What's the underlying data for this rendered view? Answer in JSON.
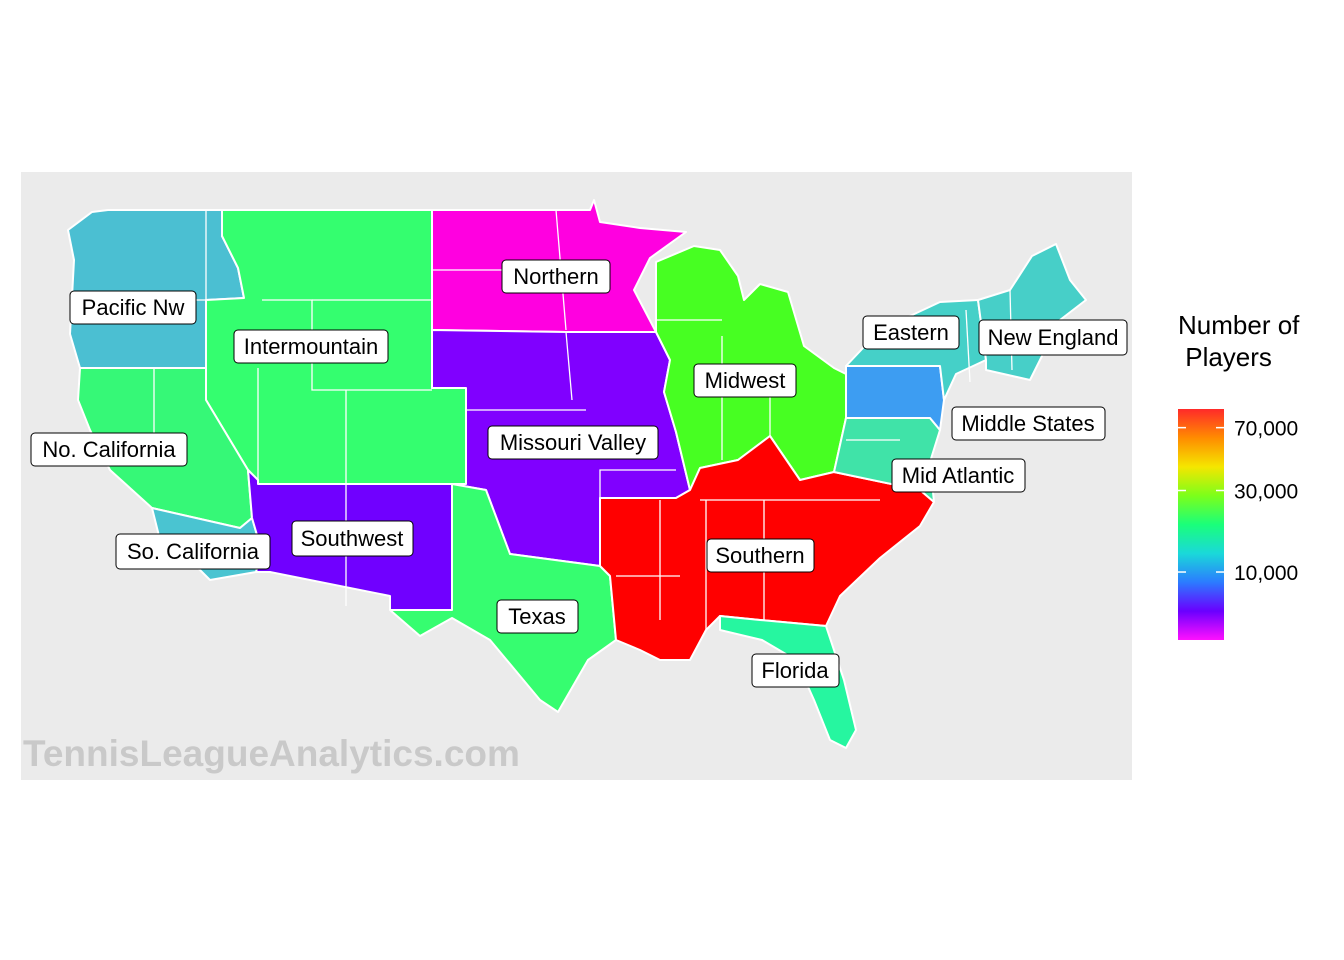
{
  "watermark": "TennisLeagueAnalytics.com",
  "legend": {
    "title_line1": "Number of",
    "title_line2": " Players",
    "ticks": [
      {
        "label": "70,000",
        "value": 70000
      },
      {
        "label": "30,000",
        "value": 30000
      },
      {
        "label": "10,000",
        "value": 10000
      }
    ],
    "colors": [
      "#ff2a2a",
      "#ff8c00",
      "#f5e600",
      "#7cff1a",
      "#1aff7a",
      "#1ad9d9",
      "#2b7bff",
      "#6a00ff",
      "#ff10ff"
    ]
  },
  "regions": [
    {
      "id": "pacific-nw",
      "label": "Pacific Nw",
      "color": "#4bbfd2"
    },
    {
      "id": "intermountain",
      "label": "Intermountain",
      "color": "#34fe6f"
    },
    {
      "id": "northern",
      "label": "Northern",
      "color": "#ff00e0"
    },
    {
      "id": "missouri-valley",
      "label": "Missouri Valley",
      "color": "#8000ff"
    },
    {
      "id": "midwest",
      "label": "Midwest",
      "color": "#47ff22"
    },
    {
      "id": "eastern",
      "label": "Eastern",
      "color": "#45d0c8"
    },
    {
      "id": "new-england",
      "label": "New England",
      "color": "#47cfc8"
    },
    {
      "id": "middle-states",
      "label": "Middle States",
      "color": "#3d9df2"
    },
    {
      "id": "mid-atlantic",
      "label": "Mid Atlantic",
      "color": "#40e3a8"
    },
    {
      "id": "no-california",
      "label": "No. California",
      "color": "#36f877"
    },
    {
      "id": "so-california",
      "label": "So. California",
      "color": "#4ac4d1"
    },
    {
      "id": "southwest",
      "label": "Southwest",
      "color": "#7000ff"
    },
    {
      "id": "texas",
      "label": "Texas",
      "color": "#36fd70"
    },
    {
      "id": "southern",
      "label": "Southern",
      "color": "#ff0000"
    },
    {
      "id": "florida",
      "label": "Florida",
      "color": "#26f6a0"
    }
  ]
}
